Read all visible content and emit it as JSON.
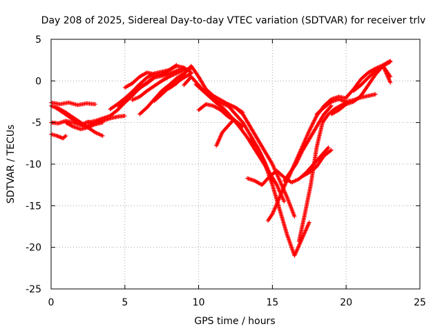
{
  "chart_data": {
    "type": "scatter",
    "title": "Day 208 of 2025, Sidereal Day-to-day VTEC variation (SDTVAR) for receiver trlv",
    "xlabel": "GPS time / hours",
    "ylabel": "SDTVAR / TECUs",
    "xlim": [
      0,
      25
    ],
    "ylim": [
      -25,
      5
    ],
    "xticks": [
      0,
      5,
      10,
      15,
      20,
      25
    ],
    "yticks": [
      -25,
      -20,
      -15,
      -10,
      -5,
      0,
      5
    ],
    "grid": true,
    "marker": "+",
    "color": "#ff0000",
    "series": [
      {
        "x": [
          0.0,
          0.5,
          1.0,
          1.5,
          2.0,
          2.5,
          3.0,
          3.5
        ],
        "y": [
          -5.0,
          -5.1,
          -4.8,
          -5.0,
          -5.3,
          -4.9,
          -5.2,
          -5.0
        ]
      },
      {
        "x": [
          0.0,
          0.6,
          1.2,
          1.8,
          2.4,
          3.0
        ],
        "y": [
          -2.6,
          -2.8,
          -2.6,
          -2.9,
          -2.7,
          -2.8
        ]
      },
      {
        "x": [
          0.0,
          0.4,
          0.8,
          1.0
        ],
        "y": [
          -6.4,
          -6.6,
          -6.9,
          -6.6
        ]
      },
      {
        "x": [
          0.0,
          0.5,
          1.0,
          1.5,
          2.0,
          2.5,
          3.0,
          3.5
        ],
        "y": [
          -3.0,
          -3.3,
          -3.8,
          -4.4,
          -5.0,
          -5.6,
          -6.2,
          -6.6
        ]
      },
      {
        "x": [
          0.3,
          0.8,
          1.3,
          1.8,
          2.3,
          2.8,
          3.3
        ],
        "y": [
          -3.2,
          -3.8,
          -4.4,
          -5.0,
          -5.5,
          -5.2,
          -4.8
        ]
      },
      {
        "x": [
          1.0,
          1.5,
          2.0,
          2.5,
          3.0,
          3.5,
          4.0,
          4.5,
          5.0
        ],
        "y": [
          -5.0,
          -5.5,
          -5.8,
          -5.6,
          -5.2,
          -4.8,
          -4.5,
          -4.3,
          -4.2
        ]
      },
      {
        "x": [
          2.5,
          3.0,
          3.5,
          4.0,
          4.5,
          5.0,
          5.5,
          6.0,
          6.5,
          7.0,
          7.5,
          8.0,
          8.5,
          9.0
        ],
        "y": [
          -5.0,
          -4.8,
          -4.5,
          -4.2,
          -3.5,
          -2.6,
          -1.8,
          -0.8,
          -0.3,
          0.4,
          0.6,
          0.8,
          1.2,
          1.6
        ]
      },
      {
        "x": [
          4.0,
          4.5,
          5.0,
          5.5,
          6.0,
          6.5,
          7.0,
          7.5,
          8.0,
          8.5,
          9.0,
          9.5
        ],
        "y": [
          -3.4,
          -2.8,
          -2.1,
          -1.3,
          -0.4,
          0.4,
          0.9,
          1.1,
          1.3,
          1.8,
          1.6,
          1.0
        ]
      },
      {
        "x": [
          4.5,
          5.0,
          5.5,
          6.0,
          6.5,
          7.0,
          7.5,
          8.0,
          8.5
        ],
        "y": [
          -3.0,
          -2.4,
          -1.7,
          -0.9,
          -0.2,
          0.5,
          0.8,
          1.3,
          1.9
        ]
      },
      {
        "x": [
          5.0,
          5.5,
          6.0,
          6.5,
          7.0,
          7.5,
          8.0,
          8.5
        ],
        "y": [
          -0.8,
          -0.3,
          0.5,
          1.0,
          0.8,
          0.7,
          0.9,
          1.1
        ]
      },
      {
        "x": [
          5.5,
          6.0,
          6.5,
          7.0,
          7.5,
          8.0,
          8.5,
          9.0,
          9.5
        ],
        "y": [
          -2.3,
          -1.9,
          -1.2,
          -0.6,
          0.0,
          0.5,
          0.9,
          1.3,
          1.5
        ]
      },
      {
        "x": [
          6.0,
          6.5,
          7.0,
          7.5,
          8.0,
          8.5,
          9.0
        ],
        "y": [
          -4.0,
          -3.2,
          -2.2,
          -1.2,
          -0.5,
          0.3,
          0.9
        ]
      },
      {
        "x": [
          7.0,
          7.5,
          8.0,
          8.5,
          9.0,
          9.5
        ],
        "y": [
          -2.4,
          -1.6,
          -0.8,
          -0.2,
          0.4,
          0.9
        ]
      },
      {
        "x": [
          8.0,
          8.5,
          9.0,
          9.5,
          10.0,
          10.5,
          11.0,
          11.5,
          12.0,
          12.5,
          13.0
        ],
        "y": [
          -0.9,
          -0.3,
          0.8,
          1.8,
          0.5,
          -1.0,
          -1.8,
          -2.3,
          -2.8,
          -3.2,
          -3.8
        ]
      },
      {
        "x": [
          9.0,
          9.5,
          10.0,
          10.5,
          11.0,
          11.5,
          12.0,
          12.5,
          13.0,
          13.5,
          14.0,
          14.5,
          15.0
        ],
        "y": [
          -0.5,
          0.5,
          -0.5,
          -1.5,
          -2.2,
          -2.7,
          -3.0,
          -4.0,
          -5.0,
          -6.5,
          -8.0,
          -9.8,
          -12.0
        ]
      },
      {
        "x": [
          9.8,
          10.3,
          10.8,
          11.3,
          11.8,
          12.3,
          12.8,
          13.3,
          13.8,
          14.3,
          14.8,
          15.3,
          15.8
        ],
        "y": [
          -0.4,
          -1.2,
          -2.0,
          -2.8,
          -3.5,
          -4.5,
          -5.6,
          -6.8,
          -8.2,
          -9.6,
          -11.0,
          -12.5,
          -14.5
        ]
      },
      {
        "x": [
          10.0,
          10.5,
          11.0
        ],
        "y": [
          -3.5,
          -2.8,
          -3.0
        ]
      },
      {
        "x": [
          11.0,
          11.5,
          12.0,
          12.5,
          13.0
        ],
        "y": [
          -3.0,
          -3.5,
          -4.3,
          -4.8,
          -5.5
        ]
      },
      {
        "x": [
          11.2,
          11.6,
          12.0,
          12.4
        ],
        "y": [
          -7.8,
          -6.2,
          -5.4,
          -4.6
        ]
      },
      {
        "x": [
          12.0,
          12.5,
          13.0,
          13.5,
          14.0,
          14.5,
          15.0,
          15.5,
          16.0,
          16.5
        ],
        "y": [
          -2.8,
          -3.2,
          -4.0,
          -5.5,
          -7.0,
          -8.5,
          -10.0,
          -12.0,
          -14.0,
          -16.3
        ]
      },
      {
        "x": [
          13.5,
          14.0,
          14.5,
          15.0,
          15.5,
          16.0,
          16.5,
          17.0,
          17.5
        ],
        "y": [
          -7.0,
          -8.0,
          -10.0,
          -12.5,
          -15.5,
          -18.5,
          -21.0,
          -19.0,
          -17.0
        ]
      },
      {
        "x": [
          13.3,
          13.8,
          14.3,
          14.8,
          15.3,
          15.8,
          16.3,
          16.8,
          17.3,
          17.8,
          18.3,
          18.8
        ],
        "y": [
          -11.7,
          -12.0,
          -12.5,
          -11.5,
          -10.8,
          -11.6,
          -12.2,
          -11.8,
          -11.0,
          -10.0,
          -9.0,
          -8.0
        ]
      },
      {
        "x": [
          14.7,
          15.0,
          15.3,
          15.6,
          15.9,
          16.2
        ],
        "y": [
          -16.8,
          -16.0,
          -14.8,
          -13.5,
          -12.3,
          -11.0
        ]
      },
      {
        "x": [
          15.8,
          16.2,
          16.6,
          17.0,
          17.5,
          18.0,
          18.5,
          19.0
        ],
        "y": [
          -12.0,
          -11.0,
          -10.0,
          -8.5,
          -7.0,
          -5.5,
          -4.0,
          -3.0
        ]
      },
      {
        "x": [
          16.8,
          17.2,
          17.6,
          18.0,
          18.4,
          18.8,
          19.2,
          19.6,
          20.0
        ],
        "y": [
          -19.3,
          -16.0,
          -12.5,
          -8.0,
          -5.0,
          -4.0,
          -3.4,
          -3.0,
          -2.6
        ]
      },
      {
        "x": [
          16.0,
          16.5,
          17.0,
          17.5,
          18.0,
          18.5,
          19.0,
          19.5,
          20.0
        ],
        "y": [
          -12.0,
          -10.0,
          -8.0,
          -6.0,
          -4.2,
          -3.0,
          -2.2,
          -1.9,
          -2.1
        ]
      },
      {
        "x": [
          17.0,
          17.5,
          18.0,
          18.5,
          19.0
        ],
        "y": [
          -11.5,
          -11.0,
          -10.3,
          -9.0,
          -8.3
        ]
      },
      {
        "x": [
          18.0,
          18.5,
          19.0,
          19.5,
          20.0,
          20.5,
          21.0,
          21.5,
          22.0
        ],
        "y": [
          -4.0,
          -3.2,
          -2.5,
          -2.2,
          -2.5,
          -2.3,
          -2.0,
          -1.8,
          -1.6
        ]
      },
      {
        "x": [
          19.0,
          19.5,
          20.0,
          20.5,
          21.0,
          21.5,
          22.0,
          22.5,
          23.0
        ],
        "y": [
          -4.0,
          -3.5,
          -2.8,
          -2.5,
          -1.8,
          -0.5,
          0.8,
          1.8,
          2.3
        ]
      },
      {
        "x": [
          20.0,
          20.5,
          21.0,
          21.5,
          22.0,
          22.5,
          23.0
        ],
        "y": [
          -2.0,
          -1.0,
          0.2,
          1.0,
          1.5,
          1.9,
          2.4
        ]
      },
      {
        "x": [
          20.5,
          21.0,
          21.5,
          22.0,
          22.5,
          23.0
        ],
        "y": [
          -1.2,
          -0.5,
          0.4,
          1.2,
          1.8,
          0.5
        ]
      },
      {
        "x": [
          22.0,
          22.5,
          23.0
        ],
        "y": [
          1.0,
          1.8,
          -0.2
        ]
      }
    ]
  }
}
